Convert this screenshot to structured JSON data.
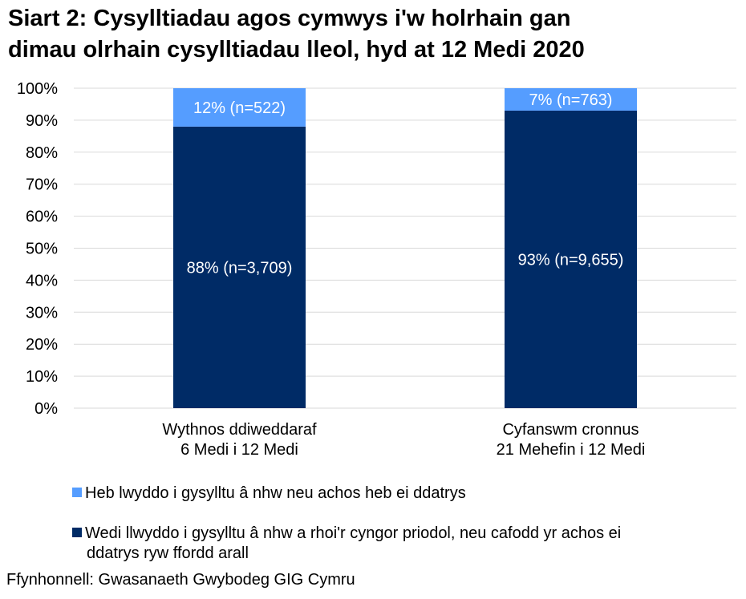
{
  "title_line1": "Siart 2: Cysylltiadau agos cymwys i'w holrhain gan",
  "title_line2": "dimau olrhain cysylltiadau lleol, hyd at 12 Medi 2020",
  "chart_data": {
    "type": "bar",
    "stacked": true,
    "categories": [
      [
        "Wythnos ddiweddaraf",
        "6 Medi i 12 Medi"
      ],
      [
        "Cyfanswm cronnus",
        "21 Mehefin i 12 Medi"
      ]
    ],
    "series": [
      {
        "name": "Wedi llwyddo i gysylltu â nhw a rhoi'r cyngor priodol, neu cafodd yr achos ei ddatrys ryw ffordd arall",
        "values": [
          88,
          93
        ],
        "labels": [
          "88% (n=3,709)",
          "93% (n=9,655)"
        ],
        "color": "#002B66"
      },
      {
        "name": "Heb lwyddo i gysylltu â nhw neu achos heb ei ddatrys",
        "values": [
          12,
          7
        ],
        "labels": [
          "12% (n=522)",
          "7% (n=763)"
        ],
        "color": "#559DFF"
      }
    ],
    "ylim": [
      0,
      100
    ],
    "yticks": [
      "0%",
      "10%",
      "20%",
      "30%",
      "40%",
      "50%",
      "60%",
      "70%",
      "80%",
      "90%",
      "100%"
    ],
    "grid": true,
    "legend_placement": "bottom"
  },
  "legend": [
    {
      "label": "Heb lwyddo i gysylltu â nhw neu achos heb ei ddatrys",
      "color": "#559DFF"
    },
    {
      "label_line1": "Wedi llwyddo i gysylltu â nhw a rhoi'r cyngor priodol, neu cafodd yr achos ei",
      "label_line2": "ddatrys ryw ffordd arall",
      "color": "#002B66"
    }
  ],
  "source": "Ffynhonnell: Gwasanaeth Gwybodeg GIG Cymru"
}
